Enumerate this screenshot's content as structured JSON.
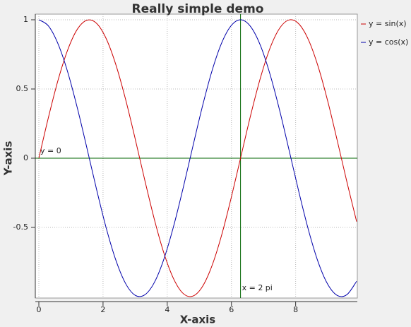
{
  "chart_data": {
    "type": "line",
    "title": "Really simple demo",
    "x_label": "X-axis",
    "y_label": "Y-axis",
    "x": [
      0,
      0.3,
      0.6,
      0.9,
      1.2,
      1.5,
      1.8,
      2.1,
      2.4,
      2.7,
      3.0,
      3.3,
      3.6,
      3.9,
      4.2,
      4.5,
      4.8,
      5.1,
      5.4,
      5.7,
      6.0,
      6.3,
      6.6,
      6.9,
      7.2,
      7.5,
      7.8,
      8.1,
      8.4,
      8.7,
      9.0,
      9.3,
      9.6,
      9.9
    ],
    "series": [
      {
        "name": "y = sin(x)",
        "color": "#cc0000",
        "values": [
          0,
          0.296,
          0.565,
          0.783,
          0.932,
          0.997,
          0.974,
          0.863,
          0.675,
          0.427,
          0.141,
          -0.158,
          -0.443,
          -0.688,
          -0.872,
          -0.978,
          -0.996,
          -0.926,
          -0.773,
          -0.551,
          -0.279,
          0.017,
          0.312,
          0.578,
          0.794,
          0.938,
          0.999,
          0.97,
          0.855,
          0.663,
          0.412,
          0.124,
          -0.174,
          -0.458
        ]
      },
      {
        "name": "y = cos(x)",
        "color": "#0000aa",
        "values": [
          1,
          0.955,
          0.825,
          0.622,
          0.362,
          0.071,
          -0.227,
          -0.505,
          -0.737,
          -0.904,
          -0.99,
          -0.987,
          -0.897,
          -0.726,
          -0.49,
          -0.211,
          0.087,
          0.378,
          0.635,
          0.835,
          0.96,
          1.0,
          0.95,
          0.816,
          0.608,
          0.347,
          0.054,
          -0.243,
          -0.519,
          -0.749,
          -0.911,
          -0.992,
          -0.985,
          -0.889
        ]
      }
    ],
    "xlim": [
      0,
      9.9
    ],
    "ylim": [
      -1,
      1
    ],
    "xticks": [
      0,
      2,
      4,
      6,
      8
    ],
    "yticks": [
      -0.5,
      0,
      0.5,
      1
    ],
    "grid": true,
    "legend": "right",
    "markers": [
      {
        "label": "y = 0",
        "y": 0,
        "color": "#006400"
      },
      {
        "label": "x = 2 pi",
        "x": 6.2832,
        "color": "#006400"
      }
    ]
  }
}
